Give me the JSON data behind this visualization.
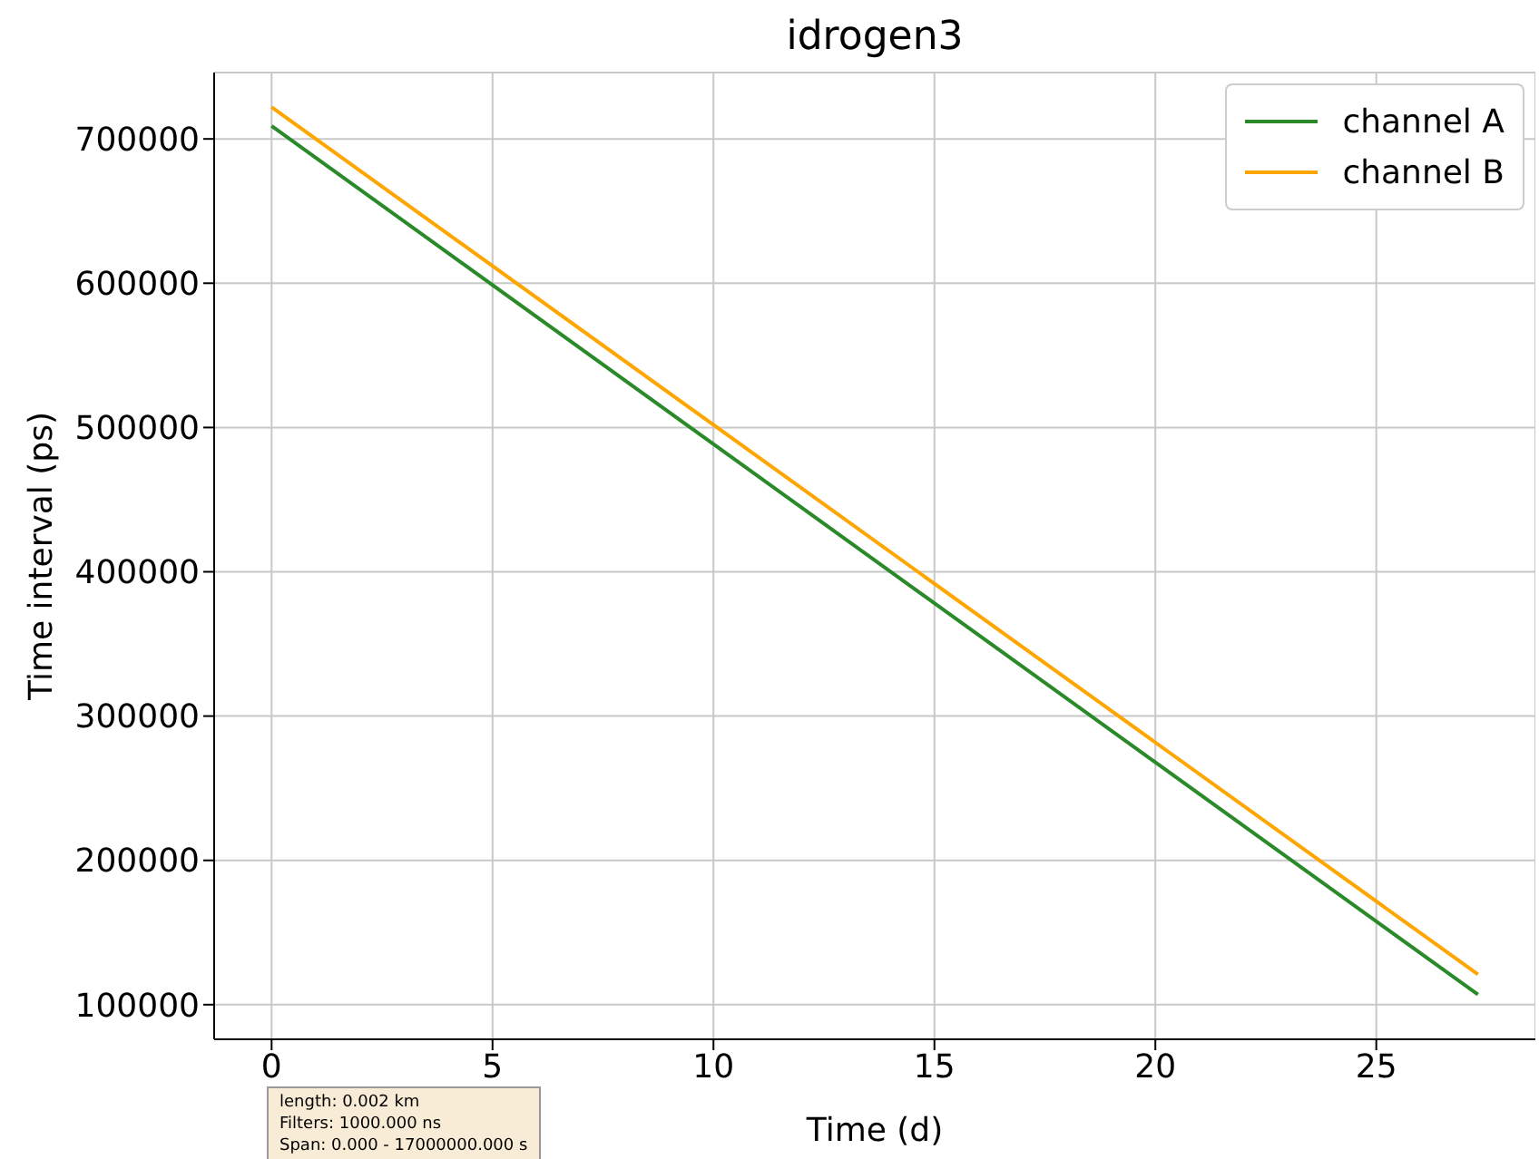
{
  "chart_data": {
    "type": "line",
    "title": "idrogen3",
    "xlabel": "Time (d)",
    "ylabel": "Time interval (ps)",
    "xlim": [
      -1.3,
      28.6
    ],
    "xticks": [
      0,
      5,
      10,
      15,
      20,
      25
    ],
    "ylim": [
      76000,
      746000
    ],
    "yticks": [
      100000,
      200000,
      300000,
      400000,
      500000,
      600000,
      700000
    ],
    "grid": true,
    "legend": "top right",
    "marker": "none",
    "line_style": "solid",
    "annotations": [
      "length: 0.002 km",
      "Filters: 1000.000 ns",
      "Span: 0.000 - 17000000.000 s"
    ],
    "x": [
      0,
      27.3
    ],
    "series": [
      {
        "name": "channel A",
        "color": "#2a8a2a",
        "values": [
          709000,
          107000
        ]
      },
      {
        "name": "channel B",
        "color": "#ffa500",
        "values": [
          722000,
          121000
        ]
      }
    ]
  }
}
